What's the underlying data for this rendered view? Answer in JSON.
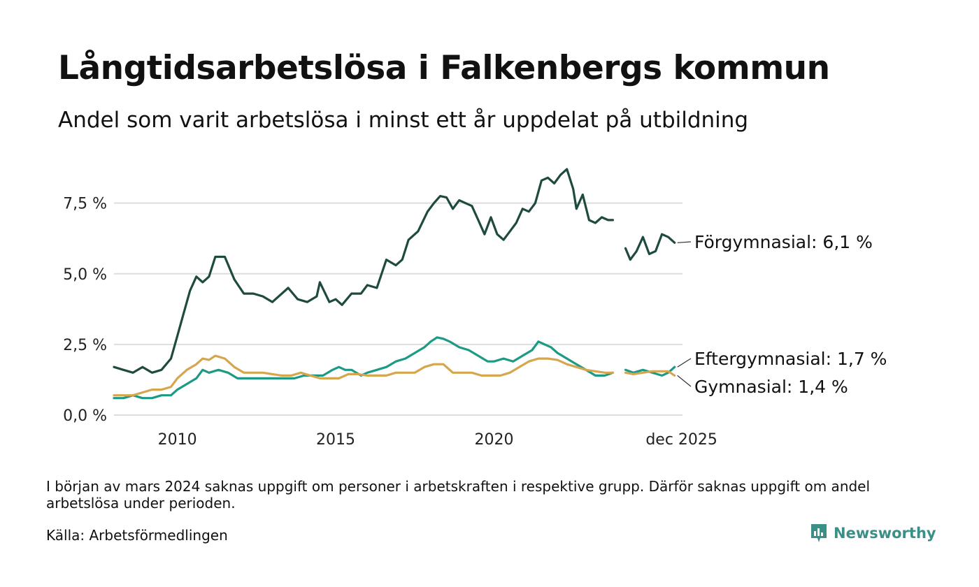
{
  "title": "Långtidsarbetslösa i Falkenbergs kommun",
  "subtitle": "Andel som varit arbetslösa i minst ett år uppdelat på utbildning",
  "note": "I början av mars 2024 saknas uppgift om personer i arbetskraften i respektive grupp. Därför saknas uppgift om andel arbetslösa under perioden.",
  "source": "Källa: Arbetsförmedlingen",
  "brand": "Newsworthy",
  "colors": {
    "forgymnasial": "#1f4a40",
    "eftergymnasial": "#1d9a85",
    "gymnasial": "#d6a64f",
    "grid": "#dddddd",
    "brand": "#3a8f86"
  },
  "chart_data": {
    "type": "line",
    "title": "Långtidsarbetslösa i Falkenbergs kommun",
    "xlabel": "",
    "ylabel": "",
    "xlim": [
      2008.0,
      2025.95
    ],
    "ylim": [
      0,
      9
    ],
    "y_ticks": [
      0,
      2.5,
      5.0,
      7.5
    ],
    "y_tick_labels": [
      "0,0 %",
      "2,5 %",
      "5,0 %",
      "7,5 %"
    ],
    "x_ticks": [
      2010,
      2015,
      2020,
      2025.92
    ],
    "x_tick_labels": [
      "2010",
      "2015",
      "2020",
      "dec 2025"
    ],
    "gap": [
      2023.75,
      2024.15
    ],
    "series": [
      {
        "name": "Förgymnasial",
        "end_label": "Förgymnasial: 6,1 %",
        "color_key": "forgymnasial",
        "points": [
          [
            2008.0,
            1.7
          ],
          [
            2008.3,
            1.6
          ],
          [
            2008.6,
            1.5
          ],
          [
            2008.9,
            1.7
          ],
          [
            2009.2,
            1.5
          ],
          [
            2009.5,
            1.6
          ],
          [
            2009.8,
            2.0
          ],
          [
            2010.0,
            2.8
          ],
          [
            2010.2,
            3.6
          ],
          [
            2010.4,
            4.4
          ],
          [
            2010.6,
            4.9
          ],
          [
            2010.8,
            4.7
          ],
          [
            2011.0,
            4.9
          ],
          [
            2011.2,
            5.6
          ],
          [
            2011.5,
            5.6
          ],
          [
            2011.8,
            4.8
          ],
          [
            2012.1,
            4.3
          ],
          [
            2012.4,
            4.3
          ],
          [
            2012.7,
            4.2
          ],
          [
            2013.0,
            4.0
          ],
          [
            2013.3,
            4.3
          ],
          [
            2013.5,
            4.5
          ],
          [
            2013.8,
            4.1
          ],
          [
            2014.1,
            4.0
          ],
          [
            2014.4,
            4.2
          ],
          [
            2014.5,
            4.7
          ],
          [
            2014.8,
            4.0
          ],
          [
            2015.0,
            4.1
          ],
          [
            2015.2,
            3.9
          ],
          [
            2015.5,
            4.3
          ],
          [
            2015.8,
            4.3
          ],
          [
            2016.0,
            4.6
          ],
          [
            2016.3,
            4.5
          ],
          [
            2016.6,
            5.5
          ],
          [
            2016.9,
            5.3
          ],
          [
            2017.1,
            5.5
          ],
          [
            2017.3,
            6.2
          ],
          [
            2017.6,
            6.5
          ],
          [
            2017.9,
            7.2
          ],
          [
            2018.1,
            7.5
          ],
          [
            2018.3,
            7.75
          ],
          [
            2018.5,
            7.7
          ],
          [
            2018.7,
            7.3
          ],
          [
            2018.9,
            7.6
          ],
          [
            2019.1,
            7.5
          ],
          [
            2019.3,
            7.4
          ],
          [
            2019.5,
            6.9
          ],
          [
            2019.7,
            6.4
          ],
          [
            2019.9,
            7.0
          ],
          [
            2020.1,
            6.4
          ],
          [
            2020.3,
            6.2
          ],
          [
            2020.5,
            6.5
          ],
          [
            2020.7,
            6.8
          ],
          [
            2020.9,
            7.3
          ],
          [
            2021.1,
            7.2
          ],
          [
            2021.3,
            7.5
          ],
          [
            2021.5,
            8.3
          ],
          [
            2021.7,
            8.4
          ],
          [
            2021.9,
            8.2
          ],
          [
            2022.1,
            8.5
          ],
          [
            2022.3,
            8.7
          ],
          [
            2022.5,
            8.0
          ],
          [
            2022.6,
            7.3
          ],
          [
            2022.8,
            7.8
          ],
          [
            2023.0,
            6.9
          ],
          [
            2023.2,
            6.8
          ],
          [
            2023.4,
            7.0
          ],
          [
            2023.6,
            6.9
          ],
          [
            2023.75,
            6.9
          ],
          [
            2024.15,
            5.9
          ],
          [
            2024.3,
            5.5
          ],
          [
            2024.5,
            5.8
          ],
          [
            2024.7,
            6.3
          ],
          [
            2024.9,
            5.7
          ],
          [
            2025.1,
            5.8
          ],
          [
            2025.3,
            6.4
          ],
          [
            2025.5,
            6.3
          ],
          [
            2025.7,
            6.1
          ]
        ]
      },
      {
        "name": "Eftergymnasial",
        "end_label": "Eftergymnasial: 1,7 %",
        "color_key": "eftergymnasial",
        "points": [
          [
            2008.0,
            0.6
          ],
          [
            2008.3,
            0.6
          ],
          [
            2008.6,
            0.7
          ],
          [
            2008.9,
            0.6
          ],
          [
            2009.2,
            0.6
          ],
          [
            2009.5,
            0.7
          ],
          [
            2009.8,
            0.7
          ],
          [
            2010.0,
            0.9
          ],
          [
            2010.3,
            1.1
          ],
          [
            2010.6,
            1.3
          ],
          [
            2010.8,
            1.6
          ],
          [
            2011.0,
            1.5
          ],
          [
            2011.3,
            1.6
          ],
          [
            2011.6,
            1.5
          ],
          [
            2011.9,
            1.3
          ],
          [
            2012.2,
            1.3
          ],
          [
            2012.5,
            1.3
          ],
          [
            2012.8,
            1.3
          ],
          [
            2013.1,
            1.3
          ],
          [
            2013.4,
            1.3
          ],
          [
            2013.7,
            1.3
          ],
          [
            2014.0,
            1.4
          ],
          [
            2014.3,
            1.4
          ],
          [
            2014.6,
            1.4
          ],
          [
            2014.9,
            1.6
          ],
          [
            2015.1,
            1.7
          ],
          [
            2015.3,
            1.6
          ],
          [
            2015.5,
            1.6
          ],
          [
            2015.8,
            1.4
          ],
          [
            2016.0,
            1.5
          ],
          [
            2016.3,
            1.6
          ],
          [
            2016.6,
            1.7
          ],
          [
            2016.9,
            1.9
          ],
          [
            2017.2,
            2.0
          ],
          [
            2017.5,
            2.2
          ],
          [
            2017.8,
            2.4
          ],
          [
            2018.0,
            2.6
          ],
          [
            2018.2,
            2.75
          ],
          [
            2018.4,
            2.7
          ],
          [
            2018.6,
            2.6
          ],
          [
            2018.9,
            2.4
          ],
          [
            2019.2,
            2.3
          ],
          [
            2019.5,
            2.1
          ],
          [
            2019.8,
            1.9
          ],
          [
            2020.0,
            1.9
          ],
          [
            2020.3,
            2.0
          ],
          [
            2020.6,
            1.9
          ],
          [
            2020.9,
            2.1
          ],
          [
            2021.2,
            2.3
          ],
          [
            2021.4,
            2.6
          ],
          [
            2021.6,
            2.5
          ],
          [
            2021.8,
            2.4
          ],
          [
            2022.0,
            2.2
          ],
          [
            2022.3,
            2.0
          ],
          [
            2022.6,
            1.8
          ],
          [
            2022.9,
            1.6
          ],
          [
            2023.2,
            1.4
          ],
          [
            2023.5,
            1.4
          ],
          [
            2023.75,
            1.5
          ],
          [
            2024.15,
            1.6
          ],
          [
            2024.4,
            1.5
          ],
          [
            2024.7,
            1.6
          ],
          [
            2025.0,
            1.5
          ],
          [
            2025.3,
            1.4
          ],
          [
            2025.5,
            1.5
          ],
          [
            2025.7,
            1.7
          ]
        ]
      },
      {
        "name": "Gymnasial",
        "end_label": "Gymnasial: 1,4 %",
        "color_key": "gymnasial",
        "points": [
          [
            2008.0,
            0.7
          ],
          [
            2008.3,
            0.7
          ],
          [
            2008.6,
            0.7
          ],
          [
            2008.9,
            0.8
          ],
          [
            2009.2,
            0.9
          ],
          [
            2009.5,
            0.9
          ],
          [
            2009.8,
            1.0
          ],
          [
            2010.0,
            1.3
          ],
          [
            2010.3,
            1.6
          ],
          [
            2010.6,
            1.8
          ],
          [
            2010.8,
            2.0
          ],
          [
            2011.0,
            1.95
          ],
          [
            2011.2,
            2.1
          ],
          [
            2011.5,
            2.0
          ],
          [
            2011.8,
            1.7
          ],
          [
            2012.1,
            1.5
          ],
          [
            2012.4,
            1.5
          ],
          [
            2012.7,
            1.5
          ],
          [
            2013.0,
            1.45
          ],
          [
            2013.3,
            1.4
          ],
          [
            2013.6,
            1.4
          ],
          [
            2013.9,
            1.5
          ],
          [
            2014.2,
            1.4
          ],
          [
            2014.5,
            1.3
          ],
          [
            2014.8,
            1.3
          ],
          [
            2015.1,
            1.3
          ],
          [
            2015.4,
            1.45
          ],
          [
            2015.7,
            1.45
          ],
          [
            2016.0,
            1.4
          ],
          [
            2016.3,
            1.4
          ],
          [
            2016.6,
            1.4
          ],
          [
            2016.9,
            1.5
          ],
          [
            2017.2,
            1.5
          ],
          [
            2017.5,
            1.5
          ],
          [
            2017.8,
            1.7
          ],
          [
            2018.1,
            1.8
          ],
          [
            2018.4,
            1.8
          ],
          [
            2018.7,
            1.5
          ],
          [
            2019.0,
            1.5
          ],
          [
            2019.3,
            1.5
          ],
          [
            2019.6,
            1.4
          ],
          [
            2019.9,
            1.4
          ],
          [
            2020.2,
            1.4
          ],
          [
            2020.5,
            1.5
          ],
          [
            2020.8,
            1.7
          ],
          [
            2021.1,
            1.9
          ],
          [
            2021.4,
            2.0
          ],
          [
            2021.7,
            2.0
          ],
          [
            2022.0,
            1.95
          ],
          [
            2022.3,
            1.8
          ],
          [
            2022.6,
            1.7
          ],
          [
            2022.9,
            1.6
          ],
          [
            2023.2,
            1.55
          ],
          [
            2023.5,
            1.5
          ],
          [
            2023.75,
            1.5
          ],
          [
            2024.15,
            1.5
          ],
          [
            2024.4,
            1.45
          ],
          [
            2024.7,
            1.5
          ],
          [
            2025.0,
            1.55
          ],
          [
            2025.3,
            1.55
          ],
          [
            2025.5,
            1.55
          ],
          [
            2025.7,
            1.4
          ]
        ]
      }
    ]
  }
}
